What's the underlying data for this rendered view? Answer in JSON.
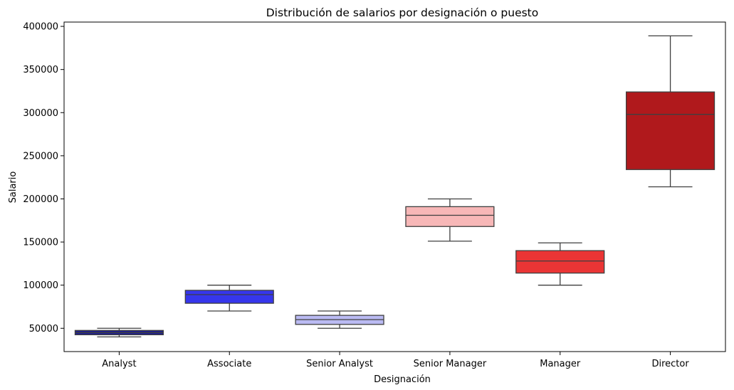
{
  "chart_data": {
    "type": "box",
    "title": "Distribución de salarios por designación o puesto",
    "xlabel": "Designación",
    "ylabel": "Salario",
    "ylim": [
      23000,
      405000
    ],
    "yticks": [
      50000,
      100000,
      150000,
      200000,
      250000,
      300000,
      350000,
      400000
    ],
    "ytick_labels": [
      "50000",
      "100000",
      "150000",
      "200000",
      "250000",
      "300000",
      "350000",
      "400000"
    ],
    "grid": false,
    "legend": "none",
    "categories": [
      "Analyst",
      "Associate",
      "Senior Analyst",
      "Senior Manager",
      "Manager",
      "Director"
    ],
    "boxes": [
      {
        "category": "Analyst",
        "whisker_low": 40000,
        "q1": 42500,
        "median": 45000,
        "q3": 47500,
        "whisker_high": 50000,
        "color": "#1f1f8f"
      },
      {
        "category": "Associate",
        "whisker_low": 70000,
        "q1": 79000,
        "median": 89000,
        "q3": 94000,
        "whisker_high": 100000,
        "color": "#3636ec"
      },
      {
        "category": "Senior Analyst",
        "whisker_low": 50000,
        "q1": 54500,
        "median": 60000,
        "q3": 65000,
        "whisker_high": 70000,
        "color": "#babaf2"
      },
      {
        "category": "Senior Manager",
        "whisker_low": 151000,
        "q1": 168000,
        "median": 181000,
        "q3": 191000,
        "whisker_high": 200000,
        "color": "#f7b7b7"
      },
      {
        "category": "Manager",
        "whisker_low": 100000,
        "q1": 114000,
        "median": 128000,
        "q3": 140000,
        "whisker_high": 149000,
        "color": "#ea3535"
      },
      {
        "category": "Director",
        "whisker_low": 214000,
        "q1": 234000,
        "median": 298000,
        "q3": 324000,
        "whisker_high": 389000,
        "color": "#b0191c"
      }
    ]
  }
}
